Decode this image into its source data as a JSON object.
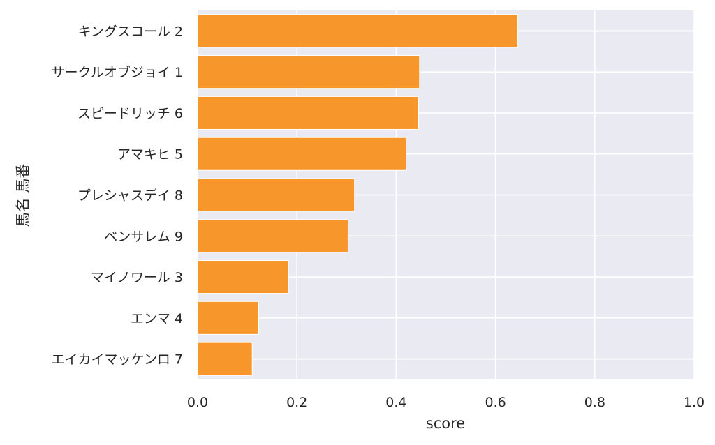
{
  "chart_data": {
    "type": "bar",
    "orientation": "horizontal",
    "categories": [
      "キングスコール 2",
      "サークルオブジョイ 1",
      "スピードリッチ 6",
      "アマキヒ 5",
      "プレシャスデイ 8",
      "ベンサレム 9",
      "マイノワール 3",
      "エンマ 4",
      "エイカイマッケンロ 7"
    ],
    "values": [
      0.645,
      0.447,
      0.445,
      0.42,
      0.316,
      0.303,
      0.183,
      0.123,
      0.11
    ],
    "xlabel": "score",
    "ylabel": "馬名 馬番",
    "xlim": [
      0,
      1.0
    ],
    "xticks": [
      "0.0",
      "0.2",
      "0.4",
      "0.6",
      "0.8",
      "1.0"
    ],
    "grid": true,
    "colors": {
      "bar": "#f7962a",
      "bar_edge": "#ffffff",
      "plot_background": "#eaeaf2",
      "grid": "#ffffff"
    }
  }
}
